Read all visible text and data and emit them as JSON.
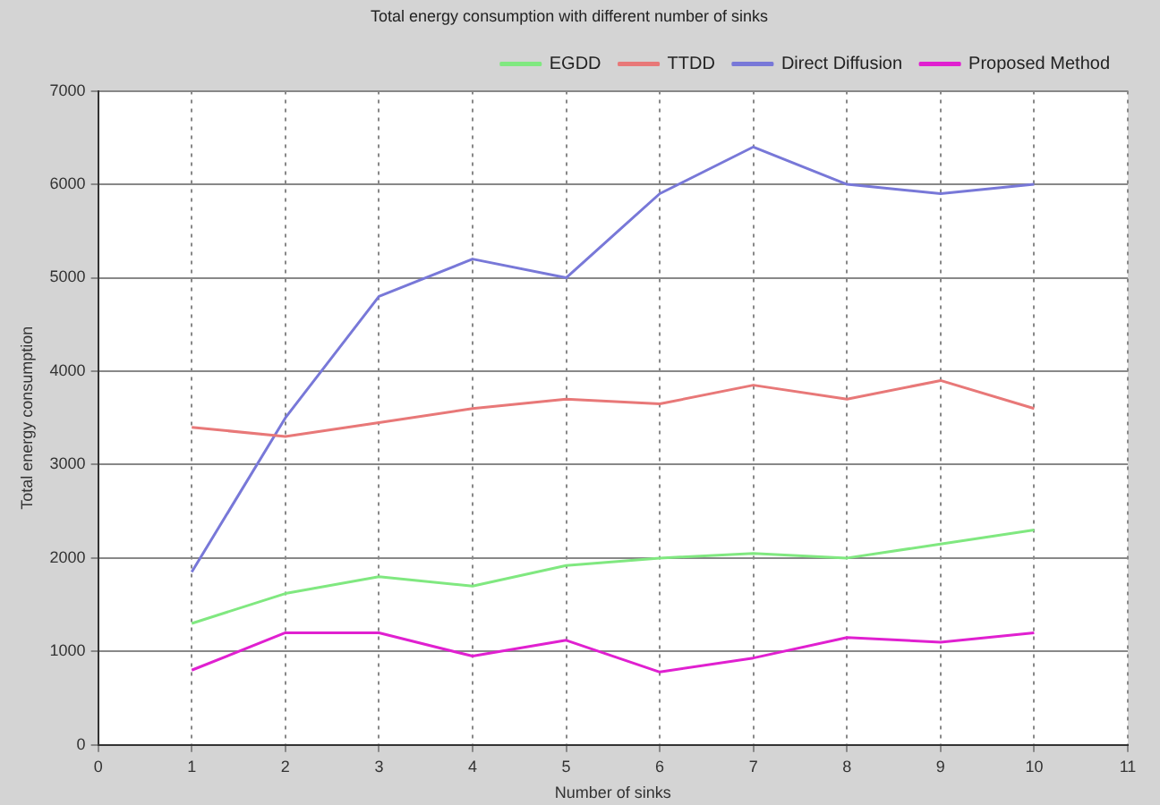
{
  "chart_data": {
    "type": "line",
    "title": "Total energy consumption with different number of sinks",
    "xlabel": "Number of sinks",
    "ylabel": "Total energy consumption",
    "x": [
      1,
      2,
      3,
      4,
      5,
      6,
      7,
      8,
      9,
      10
    ],
    "series": [
      {
        "name": "EGDD",
        "color": "#80e880",
        "values": [
          1300,
          1620,
          1800,
          1700,
          1920,
          2000,
          2050,
          2000,
          2150,
          2300
        ]
      },
      {
        "name": "TTDD",
        "color": "#e87878",
        "values": [
          3400,
          3300,
          3450,
          3600,
          3700,
          3650,
          3850,
          3700,
          3900,
          3600
        ]
      },
      {
        "name": "Direct Diffusion",
        "color": "#7878d8",
        "values": [
          1850,
          3500,
          4800,
          5200,
          5000,
          5900,
          6400,
          6000,
          5900,
          6000
        ]
      },
      {
        "name": "Proposed Method",
        "color": "#e020d0",
        "values": [
          800,
          1200,
          1200,
          950,
          1120,
          780,
          930,
          1150,
          1100,
          1200
        ]
      }
    ],
    "xlim": [
      0,
      11
    ],
    "xticks": [
      0,
      1,
      2,
      3,
      4,
      5,
      6,
      7,
      8,
      9,
      10,
      11
    ],
    "ylim": [
      0,
      7000
    ],
    "yticks": [
      0,
      1000,
      2000,
      3000,
      4000,
      5000,
      6000,
      7000
    ],
    "grid": true,
    "legend": "top right",
    "marker": "none",
    "line_style": "solid"
  }
}
